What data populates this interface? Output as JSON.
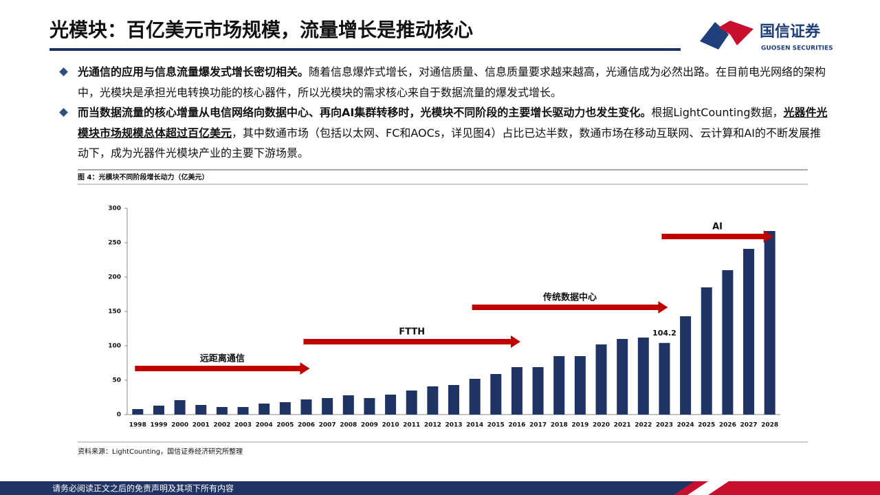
{
  "header": {
    "title": "光模块：百亿美元市场规模，流量增长是推动核心",
    "logo_cn": "国信证券",
    "logo_en": "GUOSEN SECURITIES"
  },
  "bullets": [
    [
      {
        "text": "光通信的应用与信息流量爆发式增长密切相关。",
        "bold": true
      },
      {
        "text": "随着信息爆炸式增长，对通信质量、信息质量要求越来越高，光通信成为必然出路。在目前电光网络的架构中，光模块是承担光电转换功能的核心器件，所以光模块的需求核心来自于数据流量的爆发式增长。"
      }
    ],
    [
      {
        "text": "而当数据流量的核心增量从电信网络向数据中心、再向AI集群转移时，光模块不同阶段的主要增长驱动力也发生变化。",
        "bold": true
      },
      {
        "text": "根据LightCounting数据，"
      },
      {
        "text": "光器件光模块市场规模总体超过百亿美元",
        "bold": true,
        "underline": true
      },
      {
        "text": "，其中数通市场（包括以太网、FC和AOCs，详见图4）占比已达半数，数通市场在移动互联网、云计算和AI的不断发展推动下，成为光器件光模块产业的主要下游场景。"
      }
    ]
  ],
  "figure_caption": "图 4：光模块不同阶段增长动力（亿美元）",
  "source": "资料来源：LightCounting，国信证券经济研究所整理",
  "footer": "请务必阅读正文之后的免责声明及其项下所有内容",
  "chart_data": {
    "type": "bar",
    "color": "#1f3464",
    "categories": [
      "1998",
      "1999",
      "2000",
      "2001",
      "2002",
      "2003",
      "2004",
      "2005",
      "2006",
      "2007",
      "2008",
      "2009",
      "2010",
      "2011",
      "2012",
      "2013",
      "2014",
      "2015",
      "2016",
      "2017",
      "2018",
      "2019",
      "2020",
      "2021",
      "2022",
      "2023",
      "2024",
      "2025",
      "2026",
      "2027",
      "2028"
    ],
    "values": [
      8,
      13,
      21,
      14,
      11,
      11,
      16,
      18,
      22,
      24,
      28,
      24,
      29,
      35,
      41,
      43,
      52,
      59,
      69,
      69,
      85,
      85,
      102,
      110,
      112,
      104.2,
      143,
      185,
      210,
      241,
      267
    ],
    "value_labels": [
      null,
      null,
      null,
      null,
      null,
      null,
      null,
      null,
      null,
      null,
      null,
      null,
      null,
      null,
      null,
      null,
      null,
      null,
      null,
      null,
      null,
      null,
      null,
      null,
      null,
      "104.2",
      null,
      null,
      null,
      null,
      null
    ],
    "ylim": [
      0,
      300
    ],
    "yticks": [
      0,
      50,
      100,
      150,
      200,
      250,
      300
    ],
    "grid": false,
    "annotations": [
      {
        "text": "远距离通信",
        "from": "1998",
        "to": "2006"
      },
      {
        "text": "FTTH",
        "from": "2006",
        "to": "2016"
      },
      {
        "text": "传统数据中心",
        "from": "2014",
        "to": "2023"
      },
      {
        "text": "AI",
        "from": "2023",
        "to": "2028"
      }
    ],
    "annotation_color": "#c00000"
  }
}
